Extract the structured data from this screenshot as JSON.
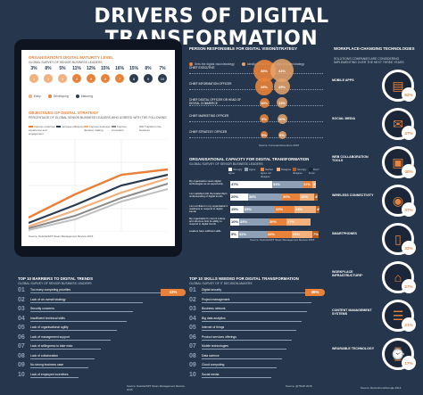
{
  "title": "DRIVERS OF DIGITAL TRANSFORMATION",
  "colors": {
    "bg": "#26364d",
    "orange": "#e8823a",
    "dark": "#1b2738",
    "white": "#ffffff",
    "teal": "#3ba7c8"
  },
  "maturity": {
    "heading": "ORGANISATION'S DIGITAL MATURITY LEVEL",
    "sub": "GLOBAL SURVEY OF SENIOR BUSINESS LEADERS",
    "legend": [
      "Early",
      "Developing",
      "Maturing"
    ],
    "percents": [
      "3%",
      "8%",
      "5%",
      "11%",
      "12%",
      "15%",
      "16%",
      "15%",
      "8%",
      "7%"
    ],
    "numbers": [
      "1",
      "2",
      "3",
      "4",
      "5",
      "6",
      "7",
      "8",
      "9",
      "10"
    ],
    "objectives_heading": "OBJECTIVES OF DIGITAL STRATEGY",
    "objectives_sub": "PERCENTAGE OF GLOBAL SENIOR BUSINESS LEADERS WHO AGREED WITH THE FOLLOWING",
    "objectives_legend": [
      "Improve customer experience and engagement",
      "Increase efficiency",
      "Improve business decision making",
      "Improve innovation",
      "Transform the business"
    ],
    "source": "Source: Deloitte/MIT Sloan Management Review 2015"
  },
  "persons": {
    "heading": "PERSON RESPONSIBLE FOR DIGITAL VISION/STRATEGY",
    "legend": [
      "Sets the digital vision/strategy",
      "Ideally should set the digital vision/strategy"
    ],
    "rows": [
      {
        "label": "CHIEF EXECUTIVE",
        "a": "38%",
        "b": "41%"
      },
      {
        "label": "CHIEF INFORMATION OFFICER",
        "a": "28%",
        "b": "25%"
      },
      {
        "label": "CHIEF DIGITAL OFFICER OR HEAD OF DIGITAL COMMERCE",
        "a": "10%",
        "b": "13%"
      },
      {
        "label": "CHIEF MARKETING OFFICER",
        "a": "9%",
        "b": "10%"
      },
      {
        "label": "CHIEF STRATEGY OFFICER",
        "a": "5%",
        "b": "6%"
      }
    ],
    "source": "Source: Forrester/Accenture 2015"
  },
  "capacity": {
    "heading": "ORGANISATIONAL CAPACITY FOR DIGITAL TRANSFORMATION",
    "sub": "GLOBAL SURVEY OF SENIOR BUSINESS LEADERS",
    "legend": [
      "Strongly agree",
      "Agree",
      "Neither agree nor disagree",
      "Disagree",
      "Strongly disagree",
      "Don't know"
    ],
    "rows": [
      {
        "label": "My organisation views digital technologies as an opportunity",
        "vals": [
          "47%",
          "34%",
          "11%",
          "4%"
        ]
      },
      {
        "label": "I am satisfied with the leadership's understanding of digital trends",
        "vals": [
          "20%",
          "38%",
          "20%",
          "16%",
          "4%"
        ]
      },
      {
        "label": "I am confident in my organisation's readiness to respond to digital trends",
        "vals": [
          "15%",
          "35%",
          "22%",
          "24%",
          "4%"
        ]
      },
      {
        "label": "My organisation's current culture and structure limit its ability to respond to digital trends",
        "vals": [
          "10%",
          "33%",
          "20%",
          "27%"
        ]
      },
      {
        "label": "Leaders have sufficient skills",
        "vals": [
          "9%",
          "32%",
          "28%",
          "23%",
          "7%"
        ]
      }
    ],
    "source": "Source: Deloitte/MIT Sloan Management Review 2015"
  },
  "barriers": {
    "heading": "TOP 10 BARRIERS TO DIGITAL TRENDS",
    "sub": "GLOBAL SURVEY OF SENIOR BUSINESS LEADERS",
    "items": [
      "Too many competing priorities",
      "Lack of an overall strategy",
      "Security concerns",
      "Insufficient technical skills",
      "Lack of organisational agility",
      "Lack of management support",
      "Lack of willingness to take risks",
      "Lack of collaboration",
      "No strong business case",
      "Lack of employee incentives"
    ],
    "top": "43%",
    "source": "Source: Deloitte/MIT Sloan Management Review 2015"
  },
  "skills": {
    "heading": "TOP 10 SKILLS NEEDED FOR DIGITAL TRANSFORMATION",
    "sub": "GLOBAL SURVEY OF IT DECISION-MAKERS",
    "items": [
      "Digital security",
      "Project management",
      "Business network",
      "Big data analytics",
      "Internet of things",
      "Product services offerings",
      "Mobile technologies",
      "Data science",
      "Cloud computing",
      "Social media"
    ],
    "top": "46%",
    "source": "Source: @TDAP 2015"
  },
  "workplace": {
    "heading": "WORKPLACE-CHANGING TECHNOLOGIES",
    "sub": "SOLUTIONS COMPANIES ARE CONSIDERING IMPLEMENTING OVER THE NEXT THREE YEARS",
    "items": [
      {
        "label": "MOBILE APPS",
        "pct": "62%",
        "icon": "mobile-apps-icon"
      },
      {
        "label": "SOCIAL MEDIA",
        "pct": "47%",
        "icon": "social-media-icon"
      },
      {
        "label": "WEB COLLABORATION TOOLS",
        "pct": "40%",
        "icon": "web-collaboration-icon"
      },
      {
        "label": "WIRELESS CONNECTIVITY",
        "pct": "37%",
        "icon": "wireless-icon"
      },
      {
        "label": "SMARTPHONES",
        "pct": "32%",
        "icon": "smartphone-icon"
      },
      {
        "label": "WORKPLACE INFRASTRUCTURE*",
        "pct": "27%",
        "icon": "infrastructure-icon"
      },
      {
        "label": "CONTENT MANAGEMENT SYSTEMS",
        "pct": "21%",
        "icon": "cms-icon"
      },
      {
        "label": "WEARABLE TECHNOLOGY",
        "pct": "17%",
        "icon": "wearable-icon"
      }
    ],
    "source": "Source: Recruitment/Google 2016"
  },
  "chart_data": [
    {
      "type": "bar",
      "title": "ORGANISATION'S DIGITAL MATURITY LEVEL",
      "categories": [
        "1",
        "2",
        "3",
        "4",
        "5",
        "6",
        "7",
        "8",
        "9",
        "10"
      ],
      "values": [
        3,
        8,
        5,
        11,
        12,
        15,
        16,
        15,
        8,
        7
      ]
    },
    {
      "type": "bar",
      "title": "PERSON RESPONSIBLE FOR DIGITAL VISION/STRATEGY",
      "categories": [
        "CHIEF EXECUTIVE",
        "CHIEF INFORMATION OFFICER",
        "CHIEF DIGITAL OFFICER OR HEAD OF DIGITAL COMMERCE",
        "CHIEF MARKETING OFFICER",
        "CHIEF STRATEGY OFFICER"
      ],
      "series": [
        {
          "name": "Sets the digital vision/strategy",
          "values": [
            38,
            28,
            10,
            9,
            5
          ]
        },
        {
          "name": "Ideally should set the digital vision/strategy",
          "values": [
            41,
            25,
            13,
            10,
            6
          ]
        }
      ]
    },
    {
      "type": "bar",
      "title": "TOP 10 BARRIERS TO DIGITAL TRENDS",
      "categories": [
        "Too many competing priorities",
        "Lack of an overall strategy",
        "Security concerns",
        "Insufficient technical skills",
        "Lack of organisational agility",
        "Lack of management support",
        "Lack of willingness to take risks",
        "Lack of collaboration",
        "No strong business case",
        "Lack of employee incentives"
      ],
      "values": [
        43,
        35,
        32,
        30,
        27,
        25,
        22,
        20,
        18,
        15
      ]
    },
    {
      "type": "bar",
      "title": "TOP 10 SKILLS NEEDED FOR DIGITAL TRANSFORMATION",
      "categories": [
        "Digital security",
        "Project management",
        "Business network",
        "Big data analytics",
        "Internet of things",
        "Product services offerings",
        "Mobile technologies",
        "Data science",
        "Cloud computing",
        "Social media"
      ],
      "values": [
        46,
        44,
        42,
        40,
        38,
        36,
        34,
        32,
        30,
        28
      ]
    },
    {
      "type": "bar",
      "title": "WORKPLACE-CHANGING TECHNOLOGIES",
      "categories": [
        "MOBILE APPS",
        "SOCIAL MEDIA",
        "WEB COLLABORATION TOOLS",
        "WIRELESS CONNECTIVITY",
        "SMARTPHONES",
        "WORKPLACE INFRASTRUCTURE*",
        "CONTENT MANAGEMENT SYSTEMS",
        "WEARABLE TECHNOLOGY"
      ],
      "values": [
        62,
        47,
        40,
        37,
        32,
        27,
        21,
        17
      ]
    }
  ]
}
